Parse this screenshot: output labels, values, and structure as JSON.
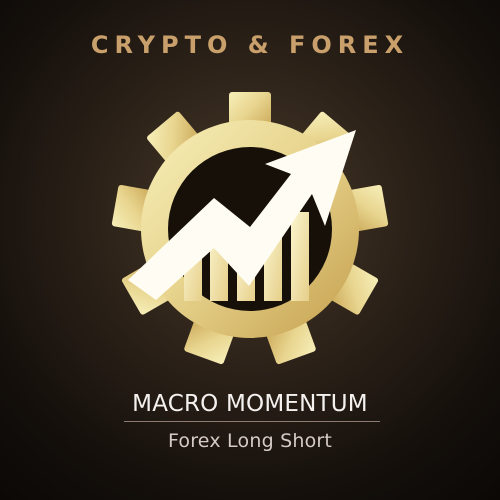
{
  "brand": {
    "title": "CRYPTO & FOREX",
    "main_title": "MACRO MOMENTUM",
    "subtitle": "Forex Long Short"
  },
  "icons": {
    "logo": "gear-chart-arrow-icon"
  },
  "colors": {
    "background_center": "#4a3b2a",
    "background_edge": "#0b0806",
    "title_gold": "#c9a06b",
    "gear_gold_light": "#f6e7a5",
    "gear_gold_dark": "#c7a24c",
    "main_text": "#f4f1ee",
    "subtitle_text": "#d5cbc4",
    "divider": "#8d7b6f"
  }
}
